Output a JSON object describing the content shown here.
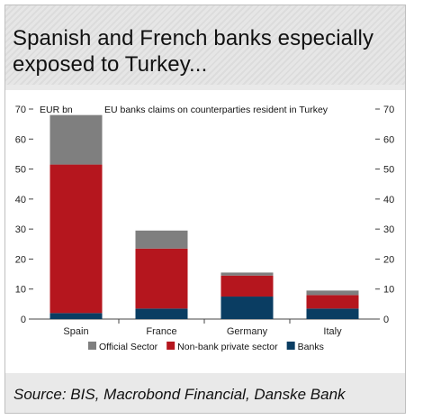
{
  "header": {
    "title_line1": "Spanish and French banks especially",
    "title_line2": "exposed to Turkey..."
  },
  "source": "Source: BIS, Macrobond Financial, Danske Bank",
  "chart_data": {
    "type": "bar",
    "stacked": true,
    "title": "EU banks claims on counterparties resident in Turkey",
    "unit_label": "EUR bn",
    "categories": [
      "Spain",
      "France",
      "Germany",
      "Italy"
    ],
    "series": [
      {
        "name": "Banks",
        "color": "#0a3d62",
        "values": [
          2,
          3.5,
          7.5,
          3.5
        ]
      },
      {
        "name": "Non-bank private sector",
        "color": "#b5161e",
        "values": [
          49.5,
          20,
          7,
          4.5
        ]
      },
      {
        "name": "Official Sector",
        "color": "#7f7f7f",
        "values": [
          16.5,
          6,
          1,
          1.5
        ]
      }
    ],
    "legend_order": [
      "Official Sector",
      "Non-bank private sector",
      "Banks"
    ],
    "yticks": [
      0,
      10,
      20,
      30,
      40,
      50,
      60,
      70
    ],
    "ylim": [
      0,
      70
    ],
    "legend_position": "bottom",
    "grid": false
  }
}
